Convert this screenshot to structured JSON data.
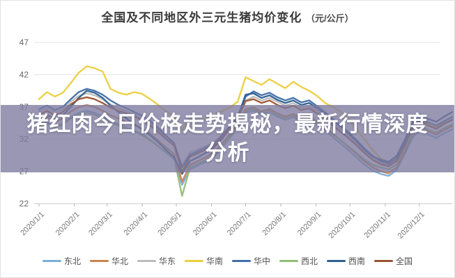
{
  "page": {
    "title": "全国及不同地区外三元生猪均价变化",
    "title_unit": "（元/公斤）"
  },
  "banner": {
    "overlay_color": "rgba(125,122,159,0.78)",
    "text_color": "#ffffff",
    "lines": [
      "猪红肉今日价格走势揭秘，最新行情深度",
      "分析"
    ]
  },
  "chart_data": {
    "type": "line",
    "title": "全国及不同地区外三元生猪均价变化",
    "ylabel": "元/公斤",
    "xlabel": "",
    "grid": true,
    "legend_position": "bottom",
    "ylim": [
      22,
      47
    ],
    "y_ticks": [
      47,
      42,
      37,
      32,
      27,
      22
    ],
    "x_tick_labels": [
      "2020/1/1",
      "2020/2/1",
      "2020/3/1",
      "2020/4/1",
      "2020/5/1",
      "2020/6/1",
      "2020/7/1",
      "2020/8/1",
      "2020/9/1",
      "2020/10/1",
      "2020/11/1",
      "2020/12/1"
    ],
    "x_tick_days": [
      0,
      31,
      60,
      91,
      121,
      152,
      182,
      213,
      244,
      274,
      305,
      335
    ],
    "x_range_days": [
      0,
      364
    ],
    "sample_interval_days": 7,
    "axis_colors": {
      "gridline": "#e5e5e8",
      "axis_line": "#c8c8cc",
      "tick": "#b5b5b8",
      "y_label": "#666666",
      "x_label": "#757575"
    },
    "series": [
      {
        "name": "东北",
        "color": "#7aaed6",
        "values": [
          34.1,
          34.6,
          33.9,
          34.4,
          35.4,
          36.1,
          36.4,
          36.1,
          35.5,
          34.8,
          34.3,
          33.8,
          33.3,
          32.7,
          31.9,
          30.9,
          29.9,
          28.9,
          24.9,
          27.3,
          27.9,
          28.5,
          29.2,
          30.6,
          32.1,
          33.8,
          36.1,
          36.4,
          35.8,
          36.2,
          35.5,
          35.0,
          35.4,
          34.7,
          35.0,
          34.2,
          33.3,
          32.3,
          31.3,
          30.2,
          29.1,
          28.0,
          27.1,
          26.6,
          26.3,
          27.2,
          29.6,
          32.2,
          33.5,
          32.7,
          32.2,
          32.9,
          33.5
        ]
      },
      {
        "name": "华北",
        "color": "#c9824f",
        "values": [
          34.9,
          35.4,
          34.7,
          35.2,
          36.3,
          37.0,
          37.3,
          37.0,
          36.4,
          35.7,
          35.2,
          34.7,
          34.2,
          33.6,
          32.8,
          31.8,
          30.7,
          29.7,
          25.4,
          28.0,
          28.6,
          29.2,
          29.9,
          31.2,
          32.7,
          34.3,
          36.6,
          36.9,
          36.3,
          36.7,
          36.0,
          35.5,
          35.9,
          35.2,
          35.5,
          34.7,
          33.8,
          32.8,
          31.8,
          30.7,
          29.6,
          28.5,
          27.6,
          27.0,
          26.7,
          27.6,
          30.0,
          32.7,
          34.0,
          33.2,
          32.7,
          33.4,
          34.0
        ]
      },
      {
        "name": "华东",
        "color": "#bcbcbe",
        "values": [
          36.2,
          36.8,
          36.1,
          36.6,
          37.8,
          38.7,
          39.1,
          38.8,
          38.2,
          37.4,
          36.8,
          36.3,
          35.8,
          35.2,
          34.4,
          33.4,
          32.3,
          31.2,
          27.9,
          29.9,
          30.4,
          30.9,
          31.5,
          32.6,
          34.0,
          35.5,
          38.0,
          38.6,
          38.0,
          38.4,
          37.8,
          37.2,
          37.6,
          36.9,
          37.2,
          36.4,
          35.5,
          34.5,
          33.5,
          32.4,
          31.3,
          30.1,
          29.1,
          28.4,
          28.0,
          28.8,
          31.1,
          33.7,
          35.0,
          34.2,
          33.7,
          34.4,
          35.0
        ]
      },
      {
        "name": "华南",
        "color": "#eccf3f",
        "values": [
          38.2,
          39.3,
          38.6,
          39.2,
          40.7,
          42.3,
          43.3,
          43.0,
          42.5,
          39.8,
          39.2,
          38.9,
          39.3,
          39.0,
          38.2,
          37.3,
          36.3,
          35.5,
          33.4,
          35.1,
          34.7,
          35.2,
          35.7,
          36.3,
          36.9,
          37.8,
          41.6,
          41.0,
          40.4,
          41.3,
          40.6,
          39.9,
          40.9,
          40.1,
          39.5,
          38.7,
          37.6,
          37.0,
          36.2,
          35.0,
          33.5,
          31.9,
          30.3,
          29.0,
          28.3,
          29.0,
          31.3,
          33.9,
          35.2,
          34.3,
          33.8,
          34.7,
          35.5
        ]
      },
      {
        "name": "华中",
        "color": "#3f6ea8",
        "values": [
          36.6,
          37.2,
          36.5,
          37.0,
          38.2,
          39.3,
          39.8,
          39.5,
          38.9,
          38.0,
          37.3,
          36.8,
          36.2,
          35.6,
          34.8,
          33.7,
          32.5,
          31.4,
          27.6,
          29.6,
          30.1,
          30.7,
          31.3,
          32.5,
          34.0,
          35.6,
          38.6,
          39.4,
          38.8,
          39.2,
          38.5,
          38.0,
          38.4,
          37.7,
          38.0,
          37.1,
          36.2,
          35.1,
          34.1,
          33.0,
          31.8,
          30.5,
          29.4,
          28.6,
          28.2,
          29.0,
          31.4,
          34.0,
          35.3,
          34.6,
          34.1,
          34.8,
          35.4
        ]
      },
      {
        "name": "西北",
        "color": "#93bc77",
        "values": [
          33.9,
          34.4,
          33.8,
          34.3,
          35.2,
          35.8,
          36.1,
          35.8,
          35.3,
          34.6,
          34.1,
          33.7,
          33.2,
          32.6,
          31.8,
          30.9,
          30.0,
          29.1,
          23.2,
          27.6,
          28.2,
          28.8,
          29.5,
          30.8,
          32.3,
          34.0,
          36.3,
          36.6,
          36.0,
          36.4,
          35.7,
          35.2,
          35.6,
          34.9,
          35.2,
          34.4,
          33.6,
          32.7,
          31.8,
          30.8,
          29.8,
          28.8,
          28.0,
          27.6,
          27.3,
          28.1,
          30.4,
          32.9,
          34.1,
          33.4,
          33.0,
          33.7,
          34.3
        ]
      },
      {
        "name": "西南",
        "color": "#2d5f8e",
        "values": [
          35.2,
          35.8,
          35.1,
          35.7,
          37.0,
          38.4,
          39.5,
          39.2,
          38.4,
          37.2,
          36.2,
          35.2,
          34.3,
          33.5,
          32.6,
          31.5,
          30.3,
          29.2,
          26.6,
          28.6,
          29.2,
          29.9,
          30.7,
          32.0,
          33.6,
          35.4,
          38.9,
          39.1,
          38.4,
          38.8,
          38.1,
          37.6,
          38.0,
          37.3,
          37.6,
          36.8,
          35.9,
          34.9,
          33.9,
          32.8,
          31.6,
          30.3,
          29.3,
          28.8,
          28.5,
          29.4,
          31.8,
          34.5,
          35.8,
          35.1,
          34.7,
          35.5,
          36.2
        ]
      },
      {
        "name": "全国",
        "color": "#9b532f",
        "values": [
          35.8,
          36.4,
          35.7,
          36.2,
          37.4,
          38.2,
          38.5,
          38.2,
          37.6,
          36.9,
          36.4,
          36.0,
          35.5,
          34.9,
          34.1,
          33.1,
          32.0,
          31.0,
          26.9,
          29.3,
          29.8,
          30.4,
          31.0,
          32.2,
          33.6,
          35.2,
          37.9,
          38.2,
          37.6,
          38.0,
          37.3,
          36.8,
          37.2,
          36.5,
          36.8,
          36.0,
          35.1,
          34.1,
          33.1,
          32.1,
          31.0,
          29.8,
          28.8,
          28.1,
          27.8,
          28.6,
          31.0,
          33.6,
          34.9,
          34.1,
          33.6,
          34.4,
          35.0
        ]
      }
    ]
  }
}
